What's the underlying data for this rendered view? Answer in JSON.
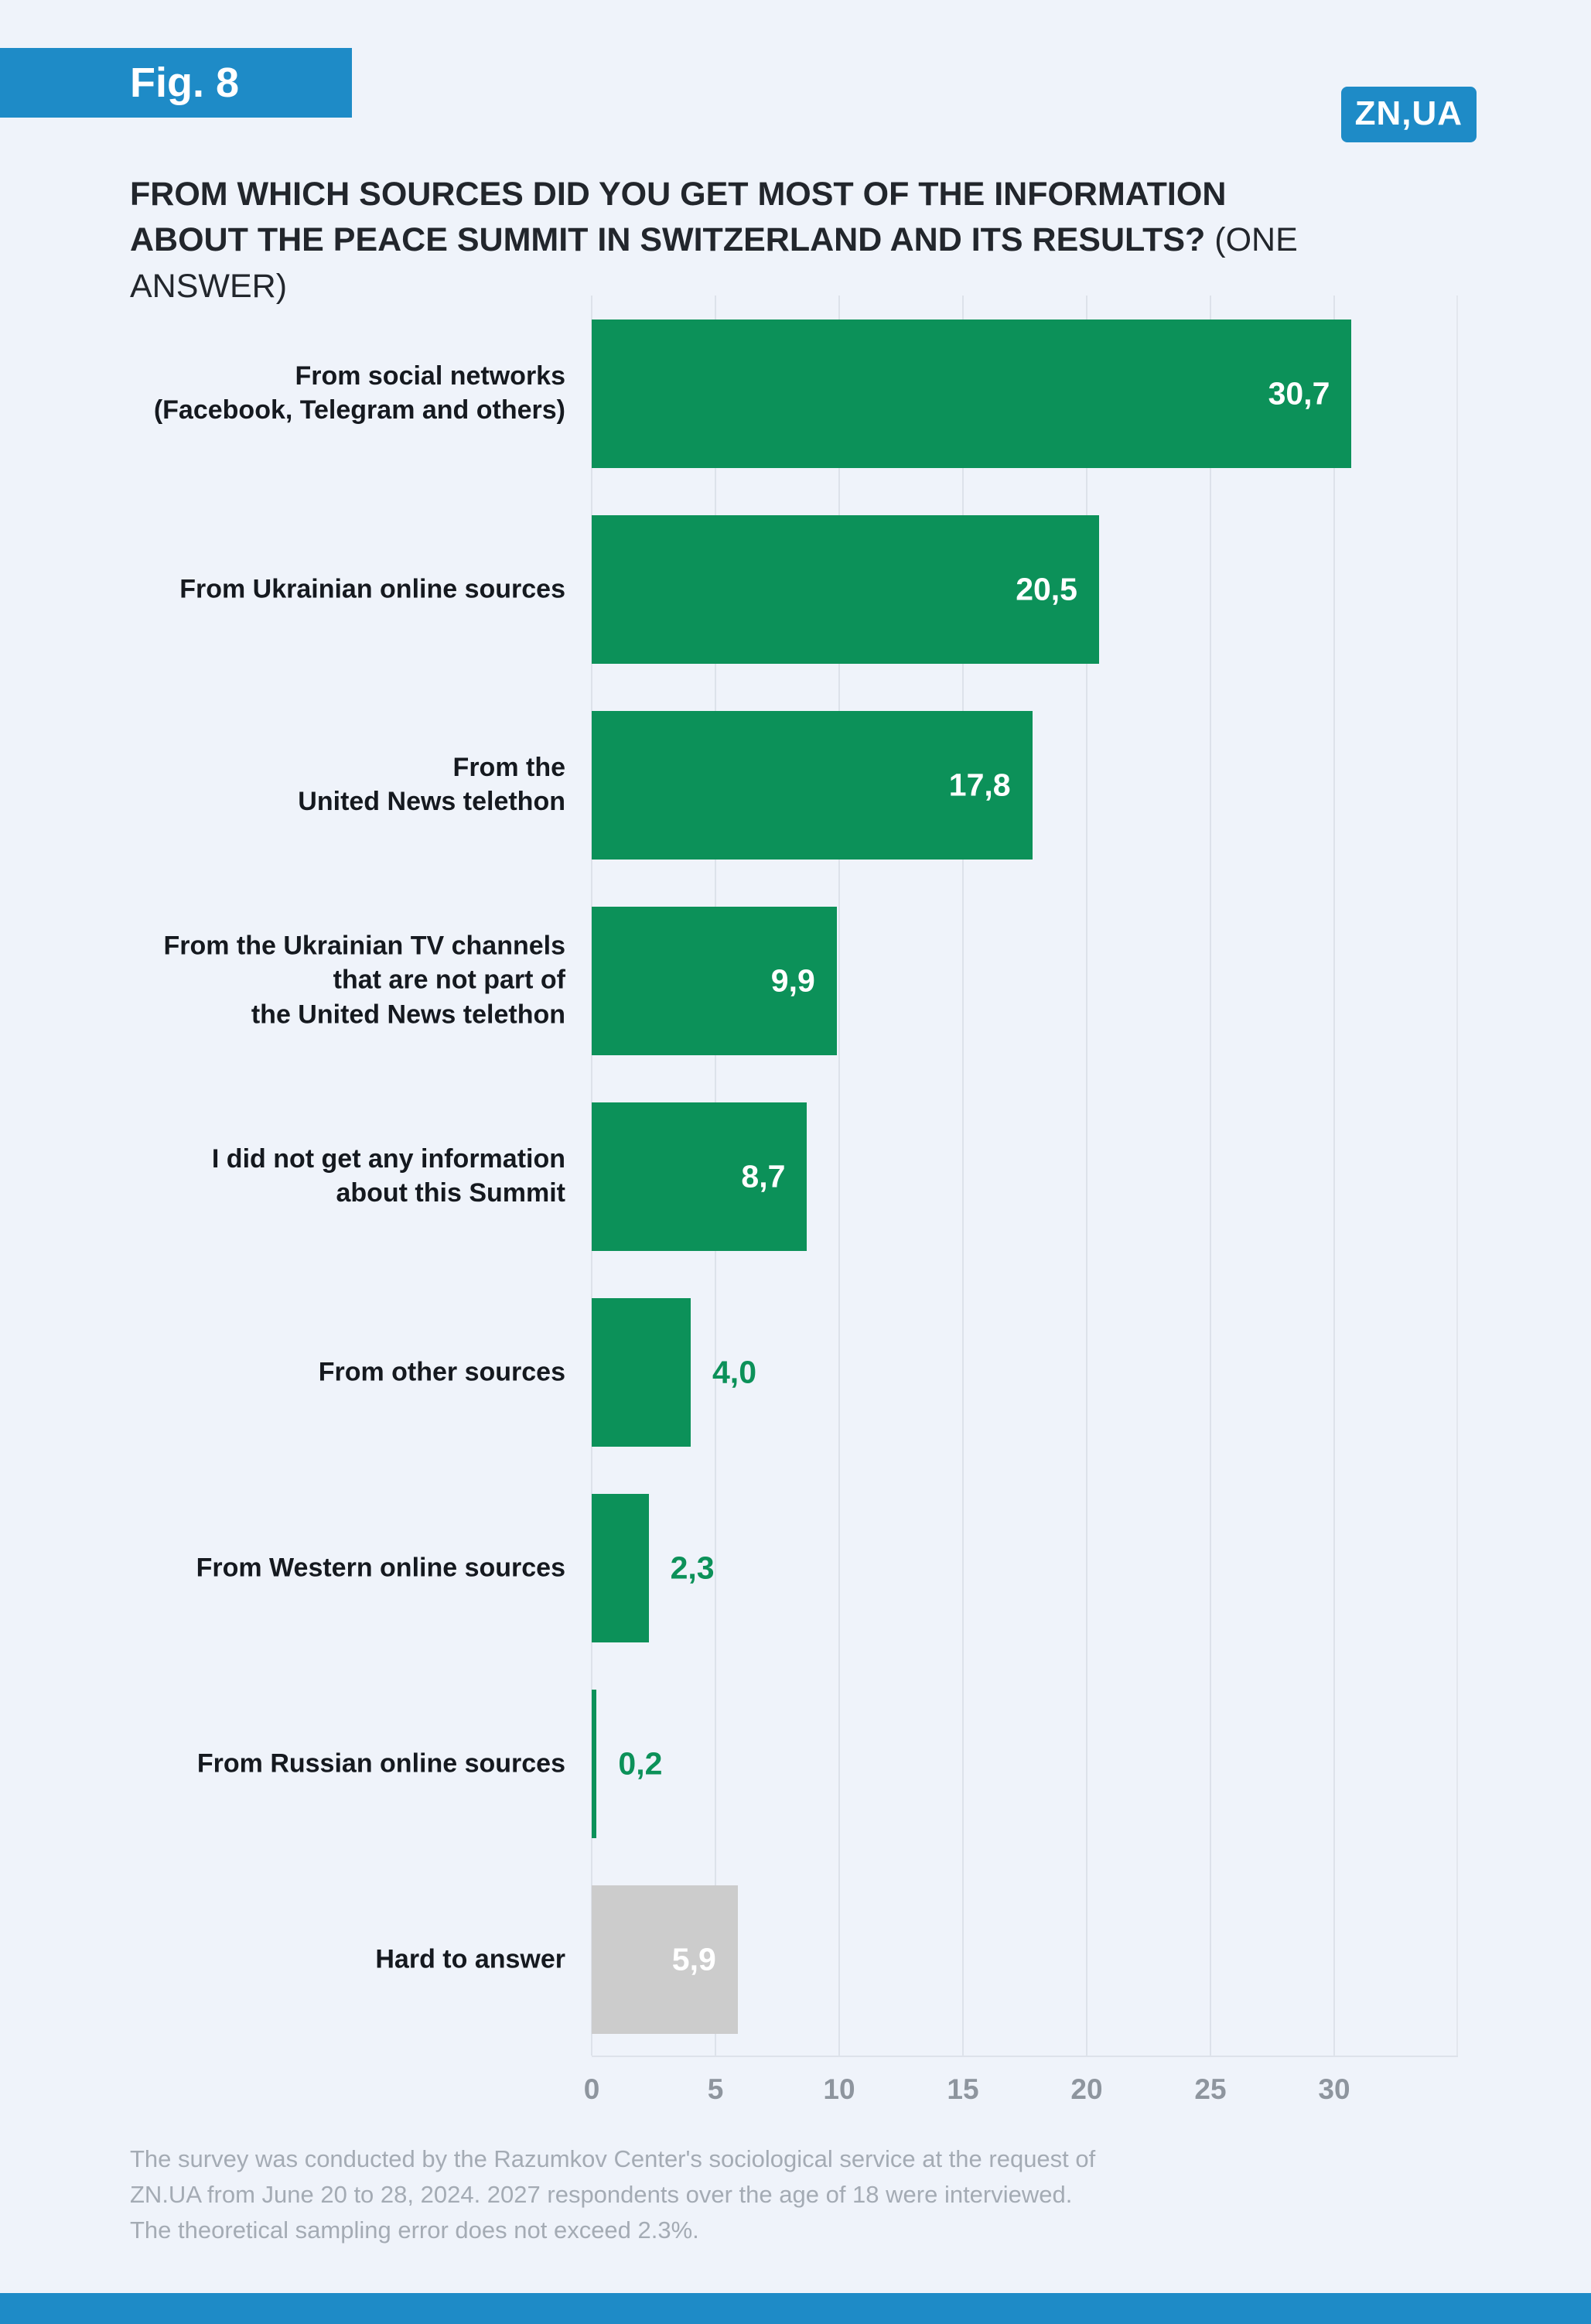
{
  "figure_label": "Fig. 8",
  "logo_text": "ZN,UA",
  "title": {
    "bold": "FROM WHICH SOURCES DID YOU GET MOST OF THE INFORMATION ABOUT THE PEACE SUMMIT IN SWITZERLAND AND ITS RESULTS?",
    "suffix": "(ONE ANSWER)"
  },
  "chart_data": {
    "type": "bar",
    "orientation": "horizontal",
    "title": "FROM WHICH SOURCES DID YOU GET MOST OF THE INFORMATION ABOUT THE PEACE SUMMIT IN SWITZERLAND AND ITS RESULTS? (ONE ANSWER)",
    "categories": [
      "From social networks\n(Facebook, Telegram and others)",
      "From Ukrainian online sources",
      "From the\nUnited News telethon",
      "From the Ukrainian TV channels\nthat are not part of\nthe United News telethon",
      "I did not get any information\nabout this Summit",
      "From other sources",
      "From Western online sources",
      "From Russian online sources",
      "Hard to answer"
    ],
    "values": [
      30.7,
      20.5,
      17.8,
      9.9,
      8.7,
      4.0,
      2.3,
      0.2,
      5.9
    ],
    "value_labels": [
      "30,7",
      "20,5",
      "17,8",
      "9,9",
      "8,7",
      "4,0",
      "2,3",
      "0,2",
      "5,9"
    ],
    "bar_colors": [
      "#0c9159",
      "#0c9159",
      "#0c9159",
      "#0c9159",
      "#0c9159",
      "#0c9159",
      "#0c9159",
      "#0c9159",
      "#cccccc"
    ],
    "xlim": [
      0,
      35
    ],
    "xticks": [
      0,
      5,
      10,
      15,
      20,
      25,
      30
    ],
    "grid": true,
    "legend": "none",
    "value_label_inside_threshold": 5
  },
  "colors": {
    "accent_blue": "#1e8bc7",
    "bar_green": "#0c9159",
    "bar_gray": "#cccccc",
    "background": "#eff3fa"
  },
  "footnote": "The survey was conducted by the Razumkov Center's sociological service at the request of\nZN.UA from June 20 to 28, 2024. 2027 respondents over the age of 18 were interviewed.\nThe theoretical sampling error does not exceed 2.3%."
}
